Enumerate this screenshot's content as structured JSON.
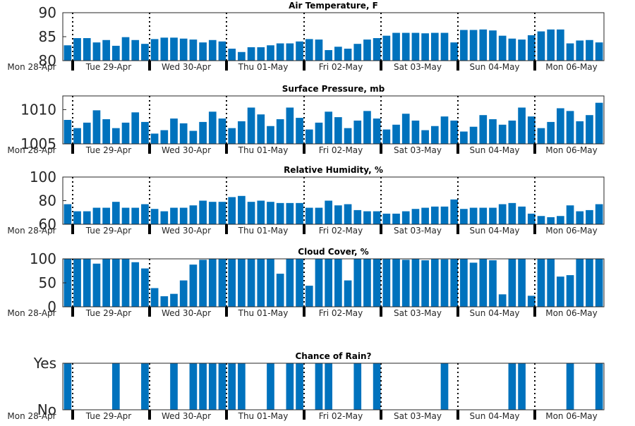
{
  "colors": {
    "bar": "#0072BD",
    "axis": "#262626",
    "day_separator": "#000000",
    "background": "#ffffff"
  },
  "chart_data": [
    {
      "type": "bar",
      "title": "Air Temperature, F",
      "ylim": [
        80,
        90
      ],
      "yticks": [
        "80",
        "85",
        "90"
      ],
      "ytick_values": [
        80,
        85,
        90
      ],
      "xtick_labels": [
        "Mon 28-Apr",
        "Tue 29-Apr",
        "Wed 30-Apr",
        "Thu 01-May",
        "Fri 02-May",
        "Sat 03-May",
        "Sun 04-May",
        "Mon 06-May"
      ],
      "values": [
        83.2,
        84.7,
        84.7,
        83.8,
        84.3,
        83.1,
        84.9,
        84.3,
        83.5,
        84.5,
        84.8,
        84.8,
        84.6,
        84.4,
        83.8,
        84.3,
        84.0,
        82.5,
        81.8,
        82.8,
        82.8,
        83.2,
        83.6,
        83.6,
        84.0,
        84.5,
        84.4,
        82.2,
        82.9,
        82.5,
        83.5,
        84.4,
        84.7,
        85.2,
        85.8,
        85.8,
        85.8,
        85.7,
        85.8,
        85.8,
        83.8,
        86.4,
        86.4,
        86.5,
        86.3,
        85.2,
        84.6,
        84.4,
        85.3,
        86.1,
        86.5,
        86.5,
        83.6,
        84.2,
        84.3,
        83.8
      ]
    },
    {
      "type": "bar",
      "title": "Surface Pressure, mb",
      "ylim": [
        1005,
        1012
      ],
      "yticks": [
        "1005",
        "1010"
      ],
      "ytick_values": [
        1005,
        1010
      ],
      "xtick_labels": [
        "Mon 28-Apr",
        "Tue 29-Apr",
        "Wed 30-Apr",
        "Thu 01-May",
        "Fri 02-May",
        "Sat 03-May",
        "Sun 04-May",
        "Mon 06-May"
      ],
      "values": [
        1008.5,
        1007.3,
        1008.1,
        1009.9,
        1008.6,
        1007.3,
        1008.1,
        1009.6,
        1008.2,
        1006.5,
        1007.0,
        1008.7,
        1008.0,
        1006.9,
        1008.2,
        1009.7,
        1008.7,
        1007.3,
        1008.3,
        1010.3,
        1009.3,
        1007.6,
        1008.6,
        1010.3,
        1008.8,
        1007.1,
        1008.1,
        1009.7,
        1008.9,
        1007.3,
        1008.4,
        1009.8,
        1008.7,
        1007.1,
        1007.8,
        1009.4,
        1008.4,
        1007.0,
        1007.6,
        1009.0,
        1008.4,
        1006.8,
        1007.5,
        1009.2,
        1008.6,
        1007.8,
        1008.4,
        1010.3,
        1009.0,
        1007.3,
        1008.2,
        1010.2,
        1009.8,
        1008.3,
        1009.2,
        1011.0
      ]
    },
    {
      "type": "bar",
      "title": "Relative Humidity, %",
      "ylim": [
        60,
        100
      ],
      "yticks": [
        "60",
        "80",
        "100"
      ],
      "ytick_values": [
        60,
        80,
        100
      ],
      "xtick_labels": [
        "Mon 28-Apr",
        "Tue 29-Apr",
        "Wed 30-Apr",
        "Thu 01-May",
        "Fri 02-May",
        "Sat 03-May",
        "Sun 04-May",
        "Mon 06-May"
      ],
      "values": [
        77,
        71,
        71,
        74,
        74,
        79,
        74,
        74,
        77,
        73,
        71,
        74,
        74,
        76,
        80,
        79,
        79,
        83,
        84,
        79,
        80,
        79,
        78,
        78,
        78,
        74,
        74,
        80,
        76,
        77,
        72,
        71,
        71,
        69,
        69,
        71,
        73,
        74,
        75,
        75,
        81,
        73,
        74,
        74,
        74,
        77,
        78,
        75,
        69,
        67,
        66,
        67,
        76,
        71,
        72,
        77
      ]
    },
    {
      "type": "bar",
      "title": "Cloud Cover, %",
      "ylim": [
        0,
        100
      ],
      "yticks": [
        "0",
        "50",
        "100"
      ],
      "ytick_values": [
        0,
        50,
        100
      ],
      "xtick_labels": [
        "Mon 28-Apr",
        "Tue 29-Apr",
        "Wed 30-Apr",
        "Thu 01-May",
        "Fri 02-May",
        "Sat 03-May",
        "Sun 04-May",
        "Mon 06-May"
      ],
      "values": [
        100,
        100,
        100,
        90,
        100,
        100,
        100,
        93,
        80,
        39,
        22,
        27,
        55,
        88,
        98,
        100,
        100,
        100,
        100,
        100,
        100,
        100,
        69,
        100,
        100,
        44,
        100,
        100,
        100,
        55,
        100,
        100,
        100,
        100,
        100,
        98,
        100,
        97,
        100,
        99,
        100,
        100,
        92,
        100,
        97,
        26,
        100,
        100,
        23,
        100,
        100,
        63,
        66,
        100,
        100,
        100
      ]
    },
    {
      "type": "bar",
      "title": "Chance of Rain?",
      "ylim": [
        0,
        1
      ],
      "yticks": [
        "No",
        "Yes"
      ],
      "ytick_values": [
        0,
        1
      ],
      "xtick_labels": [
        "Mon 28-Apr",
        "Tue 29-Apr",
        "Wed 30-Apr",
        "Thu 01-May",
        "Fri 02-May",
        "Sat 03-May",
        "Sun 04-May",
        "Mon 06-May"
      ],
      "values": [
        1,
        0,
        0,
        0,
        0,
        1,
        0,
        0,
        1,
        0,
        0,
        1,
        0,
        1,
        1,
        1,
        1,
        1,
        1,
        0,
        0,
        1,
        0,
        1,
        1,
        0,
        1,
        1,
        0,
        0,
        1,
        0,
        1,
        0,
        0,
        0,
        0,
        0,
        0,
        1,
        0,
        0,
        0,
        0,
        0,
        0,
        1,
        1,
        0,
        0,
        0,
        0,
        1,
        0,
        0,
        1
      ]
    }
  ]
}
